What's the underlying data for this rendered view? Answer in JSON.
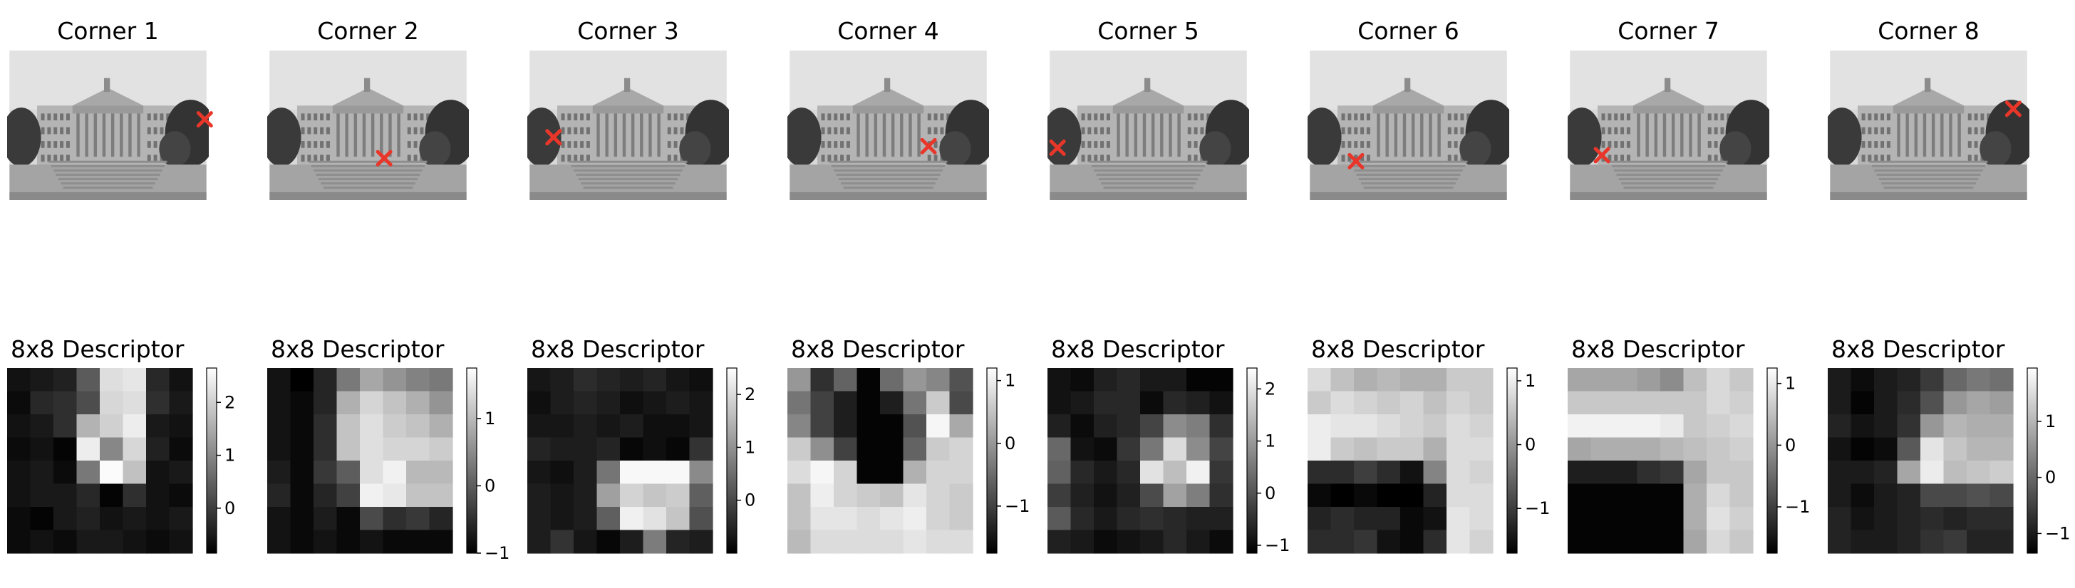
{
  "colors": {
    "marker": "#e8372a",
    "cbar_low": "#000000",
    "cbar_high": "#ffffff",
    "axis": "#000000"
  },
  "photo_subject": "grayscale building with columns, trees on both sides, steps in front",
  "chart_data": [
    {
      "type": "image",
      "title": "Corner 1",
      "marker": {
        "x": 0.98,
        "y": 0.46
      }
    },
    {
      "type": "image",
      "title": "Corner 2",
      "marker": {
        "x": 0.58,
        "y": 0.72
      }
    },
    {
      "type": "image",
      "title": "Corner 3",
      "marker": {
        "x": 0.13,
        "y": 0.58
      }
    },
    {
      "type": "image",
      "title": "Corner 4",
      "marker": {
        "x": 0.7,
        "y": 0.64
      }
    },
    {
      "type": "image",
      "title": "Corner 5",
      "marker": {
        "x": 0.05,
        "y": 0.65
      }
    },
    {
      "type": "image",
      "title": "Corner 6",
      "marker": {
        "x": 0.24,
        "y": 0.74
      }
    },
    {
      "type": "image",
      "title": "Corner 7",
      "marker": {
        "x": 0.17,
        "y": 0.7
      }
    },
    {
      "type": "image",
      "title": "Corner 8",
      "marker": {
        "x": 0.92,
        "y": 0.39
      }
    },
    {
      "type": "heatmap",
      "title": "8x8 Descriptor",
      "range": [
        -0.85,
        2.65
      ],
      "cbar_ticks": [
        "0",
        "1",
        "2"
      ],
      "values": [
        [
          -0.6,
          -0.5,
          -0.4,
          0.4,
          2.2,
          2.3,
          -0.3,
          -0.6
        ],
        [
          -0.7,
          -0.3,
          -0.2,
          0.2,
          2.1,
          2.2,
          -0.2,
          -0.5
        ],
        [
          -0.6,
          -0.5,
          -0.2,
          1.6,
          2.0,
          2.4,
          -0.5,
          -0.6
        ],
        [
          -0.7,
          -0.6,
          -0.8,
          2.4,
          1.0,
          2.1,
          -0.4,
          -0.7
        ],
        [
          -0.6,
          -0.5,
          -0.7,
          0.8,
          2.6,
          1.8,
          -0.6,
          -0.5
        ],
        [
          -0.6,
          -0.5,
          -0.5,
          -0.3,
          -0.8,
          -0.2,
          -0.6,
          -0.7
        ],
        [
          -0.7,
          -0.8,
          -0.5,
          -0.4,
          -0.6,
          -0.5,
          -0.6,
          -0.5
        ],
        [
          -0.7,
          -0.6,
          -0.7,
          -0.5,
          -0.5,
          -0.6,
          -0.7,
          -0.6
        ]
      ]
    },
    {
      "type": "heatmap",
      "title": "8x8 Descriptor",
      "range": [
        -1.0,
        1.75
      ],
      "cbar_ticks": [
        "−1",
        "0",
        "1"
      ],
      "values": [
        [
          -0.8,
          -1.0,
          -0.6,
          0.3,
          0.8,
          0.6,
          0.4,
          0.3
        ],
        [
          -0.8,
          -0.9,
          -0.6,
          0.9,
          1.3,
          1.1,
          0.9,
          0.6
        ],
        [
          -0.8,
          -0.9,
          -0.5,
          1.1,
          1.4,
          1.2,
          1.1,
          0.9
        ],
        [
          -0.8,
          -0.9,
          -0.5,
          1.1,
          1.4,
          1.3,
          1.3,
          1.2
        ],
        [
          -0.7,
          -0.9,
          -0.4,
          0.0,
          1.4,
          1.6,
          1.0,
          1.0
        ],
        [
          -0.6,
          -0.9,
          -0.6,
          -0.3,
          1.6,
          1.5,
          1.1,
          1.1
        ],
        [
          -0.8,
          -0.9,
          -0.7,
          -0.9,
          -0.2,
          -0.5,
          -0.4,
          -0.6
        ],
        [
          -0.8,
          -0.9,
          -0.8,
          -0.9,
          -0.8,
          -0.9,
          -0.9,
          -0.9
        ]
      ]
    },
    {
      "type": "heatmap",
      "title": "8x8 Descriptor",
      "range": [
        -1.0,
        2.5
      ],
      "cbar_ticks": [
        "0",
        "1",
        "2"
      ],
      "values": [
        [
          -0.7,
          -0.6,
          -0.4,
          -0.5,
          -0.6,
          -0.5,
          -0.7,
          -0.8
        ],
        [
          -0.8,
          -0.6,
          -0.5,
          -0.6,
          -0.8,
          -0.7,
          -0.6,
          -0.7
        ],
        [
          -0.7,
          -0.7,
          -0.6,
          -0.7,
          -0.6,
          -0.8,
          -0.8,
          -0.7
        ],
        [
          -0.5,
          -0.6,
          -0.6,
          -0.5,
          -0.9,
          -0.8,
          -0.9,
          -0.3
        ],
        [
          -0.7,
          -0.8,
          -0.6,
          0.6,
          2.4,
          2.4,
          2.4,
          0.9
        ],
        [
          -0.6,
          -0.7,
          -0.6,
          1.2,
          1.9,
          1.7,
          1.8,
          0.3
        ],
        [
          -0.6,
          -0.7,
          -0.6,
          0.3,
          2.3,
          2.1,
          1.7,
          0.1
        ],
        [
          -0.6,
          -0.3,
          -0.7,
          -0.9,
          -0.6,
          0.7,
          -0.5,
          -0.6
        ]
      ]
    },
    {
      "type": "heatmap",
      "title": "8x8 Descriptor",
      "range": [
        -1.75,
        1.2
      ],
      "cbar_ticks": [
        "−1",
        "0",
        "1"
      ],
      "values": [
        [
          0.0,
          -1.2,
          -0.6,
          -1.7,
          -0.5,
          0.0,
          -0.2,
          -0.8
        ],
        [
          -0.4,
          -1.0,
          -1.4,
          -1.7,
          -1.4,
          -0.4,
          0.6,
          -0.9
        ],
        [
          -0.2,
          -1.0,
          -1.4,
          -1.7,
          -1.7,
          -0.8,
          1.1,
          0.2
        ],
        [
          0.6,
          -0.1,
          -1.0,
          -1.7,
          -1.7,
          -0.6,
          0.6,
          0.7
        ],
        [
          0.8,
          1.1,
          0.7,
          -1.7,
          -1.7,
          0.3,
          0.7,
          0.7
        ],
        [
          0.5,
          1.0,
          0.7,
          0.6,
          0.5,
          0.9,
          0.7,
          0.6
        ],
        [
          0.5,
          0.9,
          0.9,
          0.8,
          0.9,
          1.0,
          0.7,
          0.6
        ],
        [
          0.4,
          0.8,
          0.8,
          0.8,
          0.8,
          0.9,
          0.8,
          0.8
        ]
      ]
    },
    {
      "type": "heatmap",
      "title": "8x8 Descriptor",
      "range": [
        -1.15,
        2.4
      ],
      "cbar_ticks": [
        "−1",
        "0",
        "1",
        "2"
      ],
      "values": [
        [
          -0.9,
          -1.0,
          -0.7,
          -0.6,
          -0.8,
          -0.8,
          -1.1,
          -1.1
        ],
        [
          -0.9,
          -0.8,
          -0.6,
          -0.6,
          -1.0,
          -0.6,
          -0.7,
          -0.9
        ],
        [
          -0.7,
          -1.0,
          -0.7,
          -0.6,
          -0.2,
          0.8,
          0.6,
          -0.5
        ],
        [
          0.3,
          -0.9,
          -1.0,
          -0.4,
          0.5,
          1.9,
          0.8,
          -0.2
        ],
        [
          0.2,
          -0.6,
          -0.8,
          -0.6,
          2.0,
          1.5,
          2.2,
          -0.4
        ],
        [
          -0.3,
          -0.7,
          -0.9,
          -0.7,
          -0.1,
          1.1,
          0.6,
          -0.5
        ],
        [
          0.1,
          -0.6,
          -0.8,
          -0.6,
          -0.5,
          -0.6,
          -0.7,
          -0.7
        ],
        [
          -0.7,
          -0.8,
          -1.0,
          -0.9,
          -0.8,
          -0.6,
          -0.8,
          -1.0
        ]
      ]
    },
    {
      "type": "heatmap",
      "title": "8x8 Descriptor",
      "range": [
        -1.7,
        1.2
      ],
      "cbar_ticks": [
        "−1",
        "0",
        "1"
      ],
      "values": [
        [
          0.8,
          0.5,
          0.3,
          0.4,
          0.3,
          0.3,
          0.6,
          0.6
        ],
        [
          0.6,
          0.8,
          0.7,
          0.6,
          0.7,
          0.5,
          0.7,
          0.6
        ],
        [
          1.0,
          0.9,
          0.9,
          0.8,
          0.7,
          0.6,
          0.8,
          0.7
        ],
        [
          1.0,
          0.6,
          0.5,
          0.6,
          0.6,
          0.3,
          0.8,
          0.8
        ],
        [
          -1.2,
          -1.2,
          -1.0,
          -1.2,
          -1.5,
          -0.2,
          0.8,
          0.7
        ],
        [
          -1.6,
          -1.7,
          -1.6,
          -1.7,
          -1.7,
          -1.3,
          0.8,
          0.8
        ],
        [
          -1.3,
          -1.2,
          -1.3,
          -1.3,
          -1.6,
          -1.5,
          0.9,
          0.8
        ],
        [
          -1.2,
          -1.2,
          -1.1,
          -1.5,
          -1.6,
          -1.2,
          0.9,
          0.7
        ]
      ]
    },
    {
      "type": "heatmap",
      "title": "8x8 Descriptor",
      "range": [
        -1.75,
        1.25
      ],
      "cbar_ticks": [
        "−1",
        "0",
        "1"
      ],
      "values": [
        [
          0.2,
          0.2,
          0.2,
          0.1,
          -0.1,
          0.5,
          0.8,
          0.6
        ],
        [
          0.6,
          0.6,
          0.6,
          0.6,
          0.6,
          0.6,
          0.8,
          0.7
        ],
        [
          1.1,
          1.1,
          1.1,
          1.1,
          1.0,
          0.6,
          0.7,
          0.8
        ],
        [
          0.2,
          0.3,
          0.3,
          0.3,
          0.4,
          0.5,
          0.6,
          0.7
        ],
        [
          -1.4,
          -1.4,
          -1.4,
          -1.2,
          -1.1,
          0.2,
          0.6,
          0.6
        ],
        [
          -1.7,
          -1.7,
          -1.7,
          -1.7,
          -1.7,
          0.3,
          0.8,
          0.6
        ],
        [
          -1.7,
          -1.7,
          -1.7,
          -1.7,
          -1.7,
          0.3,
          0.9,
          0.7
        ],
        [
          -1.7,
          -1.7,
          -1.7,
          -1.7,
          -1.7,
          0.2,
          0.8,
          0.6
        ]
      ]
    },
    {
      "type": "heatmap",
      "title": "8x8 Descriptor",
      "range": [
        -1.35,
        1.95
      ],
      "cbar_ticks": [
        "−1",
        "0",
        "1"
      ],
      "values": [
        [
          -1.0,
          -1.2,
          -1.0,
          -0.9,
          -0.6,
          0.0,
          0.2,
          0.1
        ],
        [
          -1.0,
          -1.3,
          -1.0,
          -0.8,
          -0.3,
          0.6,
          0.8,
          0.7
        ],
        [
          -0.9,
          -1.1,
          -1.0,
          -0.7,
          0.6,
          1.0,
          0.9,
          0.9
        ],
        [
          -1.1,
          -1.3,
          -1.2,
          -0.2,
          1.6,
          1.2,
          1.0,
          1.0
        ],
        [
          -1.0,
          -1.0,
          -0.9,
          0.8,
          1.7,
          1.1,
          1.2,
          1.3
        ],
        [
          -1.0,
          -1.2,
          -1.0,
          -0.9,
          -0.4,
          -0.4,
          -0.3,
          -0.4
        ],
        [
          -0.9,
          -1.1,
          -1.0,
          -0.9,
          -0.8,
          -0.9,
          -0.8,
          -0.8
        ],
        [
          -0.9,
          -1.0,
          -1.0,
          -0.9,
          -0.7,
          -0.6,
          -0.9,
          -0.9
        ]
      ]
    }
  ]
}
